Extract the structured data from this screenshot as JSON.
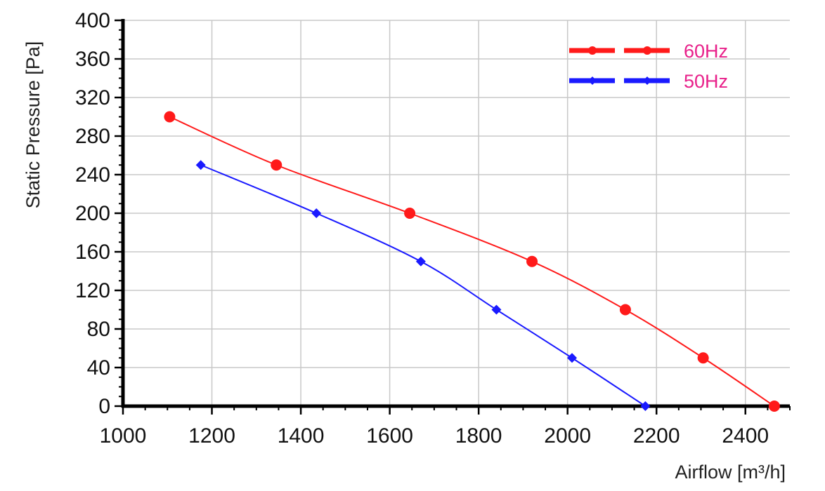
{
  "chart_data": {
    "type": "line",
    "xlabel": "Airflow [m³/h]",
    "ylabel": "Static Pressure [Pa]",
    "xlim": [
      1000,
      2500
    ],
    "ylim": [
      0,
      400
    ],
    "x_ticks": [
      1000,
      1200,
      1400,
      1600,
      1800,
      2000,
      2200,
      2400
    ],
    "y_ticks": [
      0,
      40,
      80,
      120,
      160,
      200,
      240,
      280,
      320,
      360,
      400
    ],
    "grid": true,
    "legend_position": "top-right",
    "legend_text_color": "#e8208a",
    "series": [
      {
        "name": "60Hz",
        "color": "#ff1a1a",
        "marker": "circle",
        "points": [
          {
            "x": 1105,
            "y": 300
          },
          {
            "x": 1345,
            "y": 250
          },
          {
            "x": 1645,
            "y": 200
          },
          {
            "x": 1920,
            "y": 150
          },
          {
            "x": 2130,
            "y": 100
          },
          {
            "x": 2305,
            "y": 50
          },
          {
            "x": 2465,
            "y": 0
          }
        ]
      },
      {
        "name": "50Hz",
        "color": "#1a1aff",
        "marker": "diamond",
        "points": [
          {
            "x": 1175,
            "y": 250
          },
          {
            "x": 1435,
            "y": 200
          },
          {
            "x": 1670,
            "y": 150
          },
          {
            "x": 1840,
            "y": 100
          },
          {
            "x": 2010,
            "y": 50
          },
          {
            "x": 2175,
            "y": 0
          }
        ]
      }
    ]
  }
}
